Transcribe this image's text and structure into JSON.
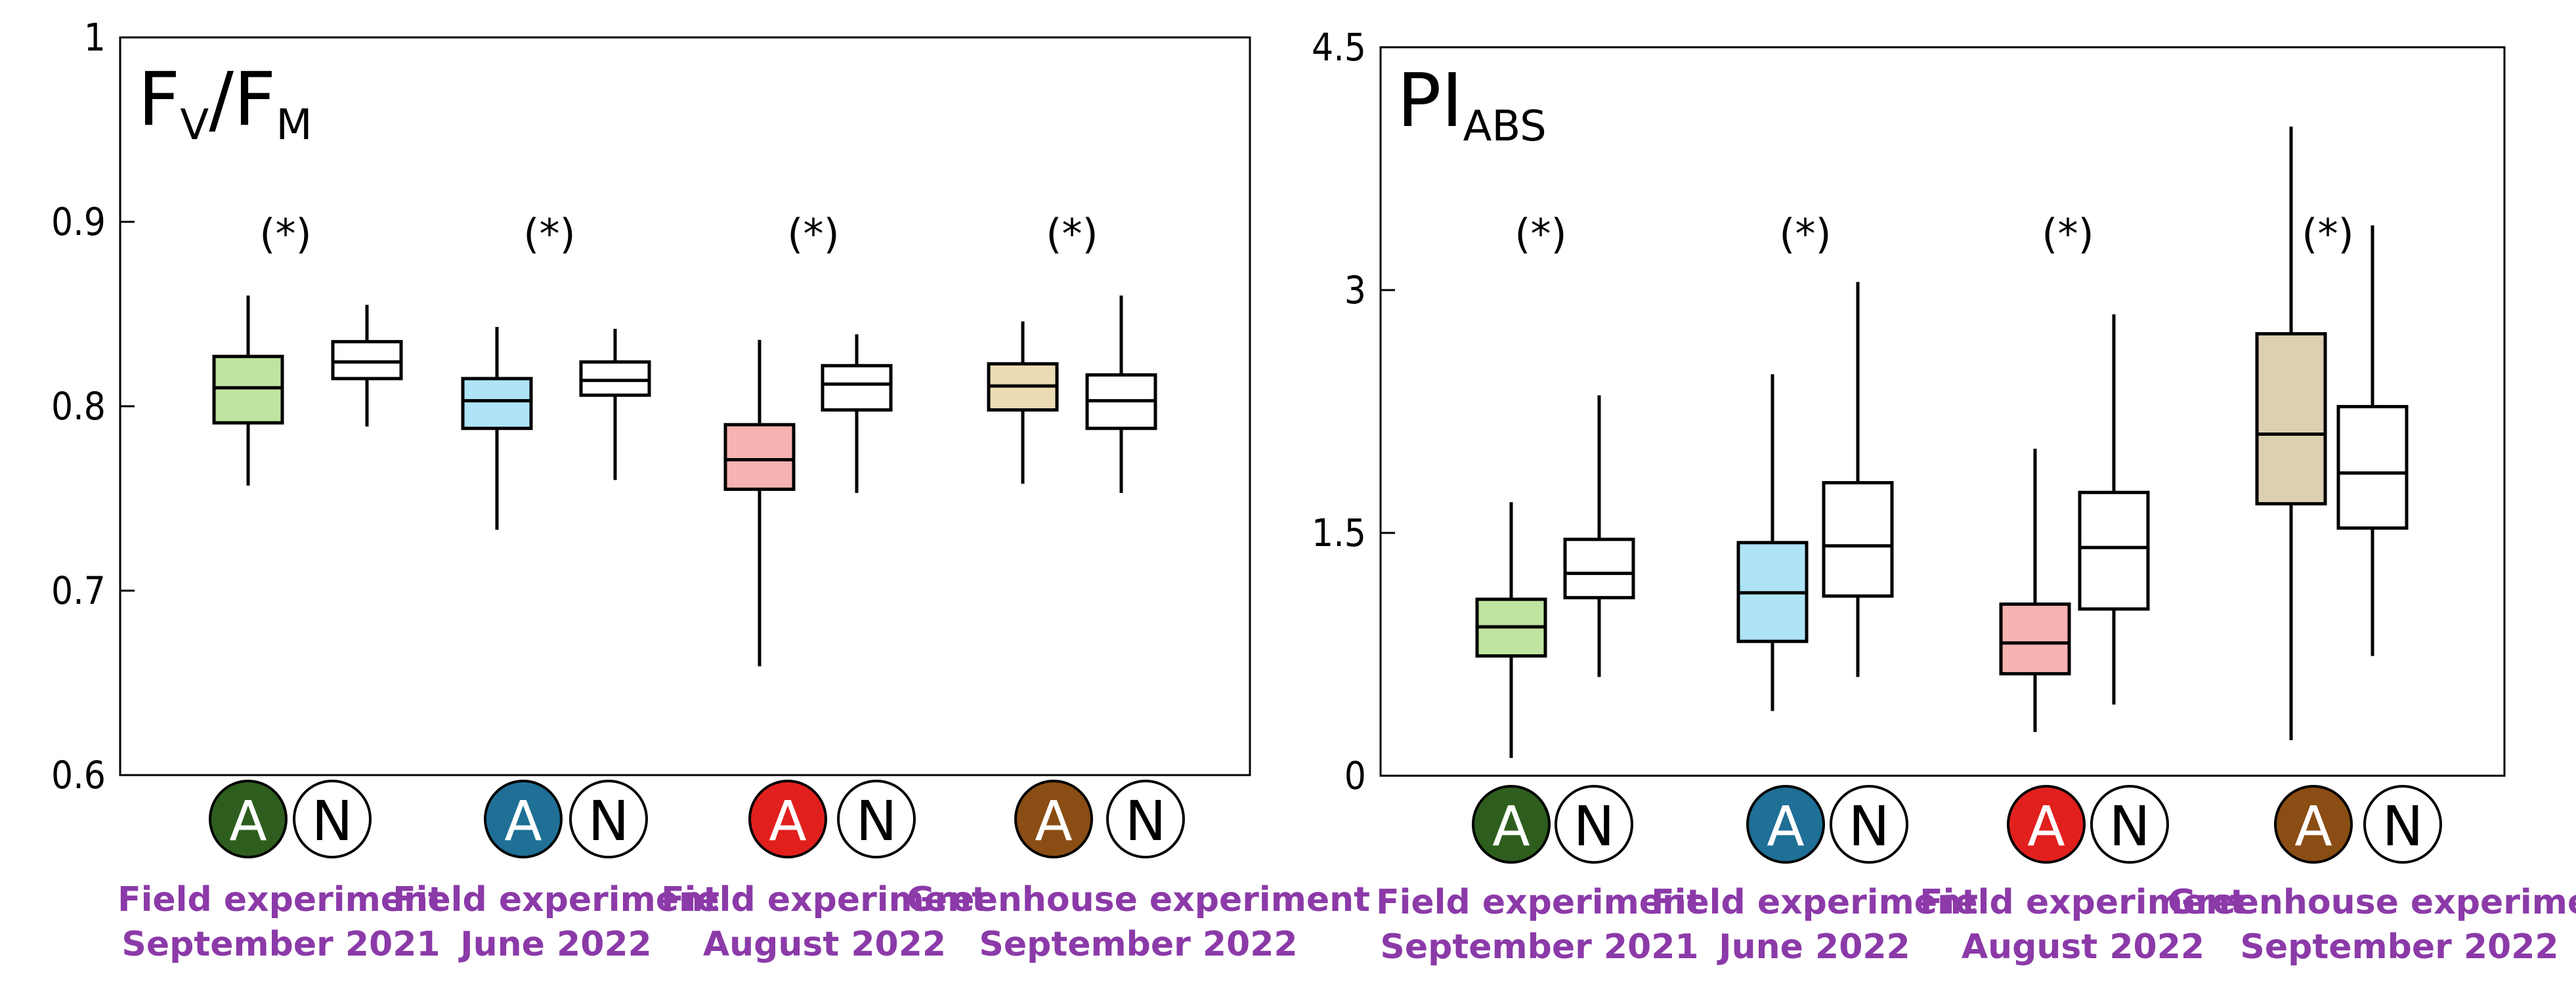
{
  "chart_data": [
    {
      "type": "box",
      "panel_id": "fvfm",
      "title": {
        "main": "F",
        "sub1": "V",
        "slash": "/",
        "main2": "F",
        "sub2": "M"
      },
      "ylim": [
        0.6,
        1
      ],
      "yticks": [
        0.6,
        0.7,
        0.8,
        0.9,
        1
      ],
      "ytick_labels": [
        "0.6",
        "0.7",
        "0.8",
        "0.9",
        "1"
      ],
      "groups": [
        {
          "label_line1": "Field experiment",
          "label_line2": "September 2021",
          "significance": "(*)",
          "boxes": [
            {
              "series": "A",
              "whisker_low": 0.757,
              "q1": 0.791,
              "median": 0.81,
              "q3": 0.827,
              "whisker_high": 0.86
            },
            {
              "series": "N",
              "whisker_low": 0.789,
              "q1": 0.815,
              "median": 0.824,
              "q3": 0.835,
              "whisker_high": 0.855
            }
          ]
        },
        {
          "label_line1": "Field experiment",
          "label_line2": "June 2022",
          "significance": "(*)",
          "boxes": [
            {
              "series": "A",
              "whisker_low": 0.733,
              "q1": 0.788,
              "median": 0.803,
              "q3": 0.815,
              "whisker_high": 0.843
            },
            {
              "series": "N",
              "whisker_low": 0.76,
              "q1": 0.806,
              "median": 0.814,
              "q3": 0.824,
              "whisker_high": 0.842
            }
          ]
        },
        {
          "label_line1": "Field experiment",
          "label_line2": "August 2022",
          "significance": "(*)",
          "boxes": [
            {
              "series": "A",
              "whisker_low": 0.659,
              "q1": 0.755,
              "median": 0.771,
              "q3": 0.79,
              "whisker_high": 0.836
            },
            {
              "series": "N",
              "whisker_low": 0.753,
              "q1": 0.798,
              "median": 0.812,
              "q3": 0.822,
              "whisker_high": 0.839
            }
          ]
        },
        {
          "label_line1": "Greenhouse experiment",
          "label_line2": "September 2022",
          "significance": "(*)",
          "boxes": [
            {
              "series": "A",
              "whisker_low": 0.758,
              "q1": 0.798,
              "median": 0.811,
              "q3": 0.823,
              "whisker_high": 0.846
            },
            {
              "series": "N",
              "whisker_low": 0.753,
              "q1": 0.788,
              "median": 0.803,
              "q3": 0.817,
              "whisker_high": 0.86
            }
          ]
        }
      ]
    },
    {
      "type": "box",
      "panel_id": "piabs",
      "title": {
        "main": "PI",
        "sub1": "ABS"
      },
      "ylim": [
        0,
        4.5
      ],
      "yticks": [
        0,
        1.5,
        3,
        4.5
      ],
      "ytick_labels": [
        "0",
        "1.5",
        "3",
        "4.5"
      ],
      "groups": [
        {
          "label_line1": "Field experiment",
          "label_line2": "September 2021",
          "significance": "(*)",
          "boxes": [
            {
              "series": "A",
              "whisker_low": 0.11,
              "q1": 0.74,
              "median": 0.92,
              "q3": 1.09,
              "whisker_high": 1.69
            },
            {
              "series": "N",
              "whisker_low": 0.61,
              "q1": 1.1,
              "median": 1.25,
              "q3": 1.46,
              "whisker_high": 2.35
            }
          ]
        },
        {
          "label_line1": "Field experiment",
          "label_line2": "June 2022",
          "significance": "(*)",
          "boxes": [
            {
              "series": "A",
              "whisker_low": 0.4,
              "q1": 0.83,
              "median": 1.13,
              "q3": 1.44,
              "whisker_high": 2.48
            },
            {
              "series": "N",
              "whisker_low": 0.61,
              "q1": 1.11,
              "median": 1.42,
              "q3": 1.81,
              "whisker_high": 3.05
            }
          ]
        },
        {
          "label_line1": "Field experiment",
          "label_line2": "August 2022",
          "significance": "(*)",
          "boxes": [
            {
              "series": "A",
              "whisker_low": 0.27,
              "q1": 0.63,
              "median": 0.82,
              "q3": 1.06,
              "whisker_high": 2.02
            },
            {
              "series": "N",
              "whisker_low": 0.44,
              "q1": 1.03,
              "median": 1.41,
              "q3": 1.75,
              "whisker_high": 2.85
            }
          ]
        },
        {
          "label_line1": "Greenhouse experiment",
          "label_line2": "September 2022",
          "significance": "(*)",
          "boxes": [
            {
              "series": "A",
              "whisker_low": 0.22,
              "q1": 1.68,
              "median": 2.11,
              "q3": 2.73,
              "whisker_high": 4.01
            },
            {
              "series": "N",
              "whisker_low": 0.74,
              "q1": 1.53,
              "median": 1.87,
              "q3": 2.28,
              "whisker_high": 3.4
            }
          ]
        }
      ]
    }
  ],
  "series": {
    "A": {
      "badge_text": "A",
      "box_fills": [
        "#bfe3a0",
        "#aee4f6",
        "#f7b2b2",
        "#ecdcb4"
      ],
      "box_fills_pi": [
        "#bfe3a0",
        "#aee4f6",
        "#f7b2b2",
        "#dccfb2"
      ],
      "badge_fills": [
        "#2e5e1e",
        "#1f6f96",
        "#e1201e",
        "#8a4d14"
      ],
      "badge_text_color": "#ffffff"
    },
    "N": {
      "badge_text": "N",
      "box_fill": "#ffffff",
      "badge_fill": "#ffffff",
      "badge_text_color": "#000000"
    }
  },
  "colors": {
    "label_purple": "#8b3aa8",
    "axis": "#000000"
  }
}
